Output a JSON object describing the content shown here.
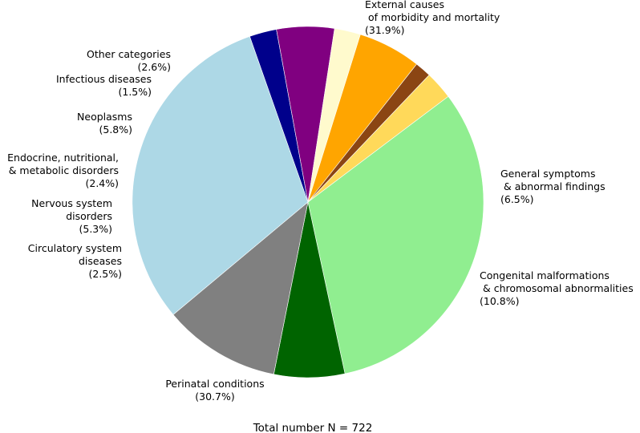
{
  "chart_data": {
    "type": "pie",
    "caption": "Total number N = 722",
    "slices": [
      {
        "name": "External causes of morbidity and mortality",
        "label_lines": [
          "External causes",
          " of morbidity and mortality",
          "(31.9%)"
        ],
        "value": 31.9,
        "color": "#90ee90"
      },
      {
        "name": "General symptoms & abnormal findings",
        "label_lines": [
          "General symptoms",
          " & abnormal findings",
          "(6.5%)"
        ],
        "value": 6.5,
        "color": "#006400"
      },
      {
        "name": "Congenital malformations & chromosomal abnormalities",
        "label_lines": [
          "Congenital malformations",
          " & chromosomal abnormalities",
          "(10.8%)"
        ],
        "value": 10.8,
        "color": "#808080"
      },
      {
        "name": "Perinatal conditions",
        "label_lines": [
          "Perinatal conditions",
          "(30.7%)"
        ],
        "value": 30.7,
        "color": "#add8e6"
      },
      {
        "name": "Circulatory system diseases",
        "label_lines": [
          "Circulatory system",
          "diseases",
          "(2.5%)"
        ],
        "value": 2.5,
        "color": "#00008b"
      },
      {
        "name": "Nervous system disorders",
        "label_lines": [
          "Nervous system",
          "disorders",
          "(5.3%)"
        ],
        "value": 5.3,
        "color": "#800080"
      },
      {
        "name": "Endocrine, nutritional, & metabolic disorders",
        "label_lines": [
          "Endocrine, nutritional,",
          "& metabolic disorders",
          "(2.4%)"
        ],
        "value": 2.4,
        "color": "#fffacd"
      },
      {
        "name": "Neoplasms",
        "label_lines": [
          "Neoplasms",
          "(5.8%)"
        ],
        "value": 5.8,
        "color": "#ffa500"
      },
      {
        "name": "Infectious diseases",
        "label_lines": [
          "Infectious diseases",
          "(1.5%)"
        ],
        "value": 1.5,
        "color": "#8b4513"
      },
      {
        "name": "Other categories",
        "label_lines": [
          "Other categories",
          "(2.6%)"
        ],
        "value": 2.6,
        "color": "#ffd95a"
      }
    ],
    "start_angle_deg": 37,
    "direction": "clockwise",
    "legend": "none",
    "edge_color": "#ffffff"
  }
}
